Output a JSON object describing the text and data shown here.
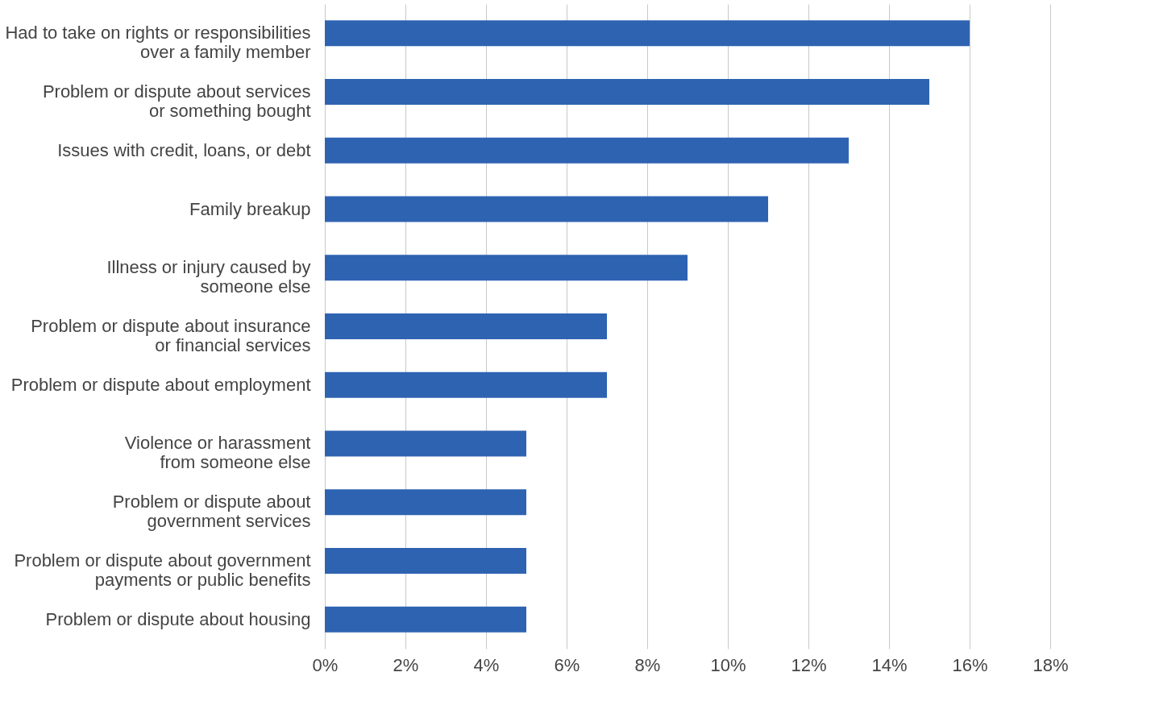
{
  "chart_data": {
    "type": "bar",
    "orientation": "horizontal",
    "categories": [
      "Had to take on rights or responsibilities\nover a family member",
      "Problem or dispute about services\nor something bought",
      "Issues with credit, loans, or debt",
      "Family breakup",
      "Illness or injury caused by\nsomeone else",
      "Problem or dispute about insurance\nor financial services",
      "Problem or dispute about employment",
      "Violence or harassment\nfrom someone else",
      "Problem or dispute about\ngovernment services",
      "Problem or dispute about government\npayments or public benefits",
      "Problem or dispute about housing"
    ],
    "values": [
      16,
      15,
      13,
      11,
      9,
      7,
      7,
      5,
      5,
      5,
      5
    ],
    "color": "#2e63b2",
    "xlim": [
      0,
      18
    ],
    "xticks": [
      {
        "value": 0,
        "label": "0%"
      },
      {
        "value": 2,
        "label": "2%"
      },
      {
        "value": 4,
        "label": "4%"
      },
      {
        "value": 6,
        "label": "6%"
      },
      {
        "value": 8,
        "label": "8%"
      },
      {
        "value": 10,
        "label": "10%"
      },
      {
        "value": 12,
        "label": "12%"
      },
      {
        "value": 14,
        "label": "14%"
      },
      {
        "value": 16,
        "label": "16%"
      },
      {
        "value": 18,
        "label": "18%"
      }
    ],
    "grid": "x"
  }
}
